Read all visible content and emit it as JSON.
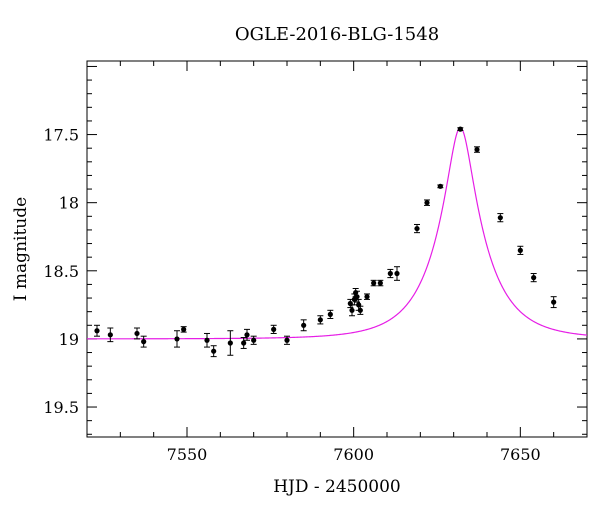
{
  "chart_data": {
    "type": "scatter",
    "title": "OGLE-2016-BLG-1548",
    "xlabel": "HJD - 2450000",
    "ylabel": "I magnitude",
    "xlim": [
      7520,
      7670
    ],
    "ylim": [
      19.72,
      16.96
    ],
    "y_inverted": true,
    "x_ticks": [
      7550,
      7600,
      7650
    ],
    "y_ticks": [
      17.5,
      18,
      18.5,
      19,
      19.5
    ],
    "x_tick_labels": [
      "7550",
      "7600",
      "7650"
    ],
    "y_tick_labels": [
      "17.5",
      "18",
      "18.5",
      "19",
      "19.5"
    ],
    "grid": false,
    "colors": {
      "points": "#000000",
      "model": "#e61ee6"
    },
    "series": [
      {
        "type": "scatter",
        "points": [
          {
            "x": 7523,
            "y": 18.94,
            "err": 0.04
          },
          {
            "x": 7527,
            "y": 18.97,
            "err": 0.05
          },
          {
            "x": 7535,
            "y": 18.96,
            "err": 0.04
          },
          {
            "x": 7537,
            "y": 19.02,
            "err": 0.04
          },
          {
            "x": 7547,
            "y": 19.0,
            "err": 0.06
          },
          {
            "x": 7549,
            "y": 18.93,
            "err": 0.02
          },
          {
            "x": 7556,
            "y": 19.01,
            "err": 0.05
          },
          {
            "x": 7558,
            "y": 19.09,
            "err": 0.04
          },
          {
            "x": 7563,
            "y": 19.03,
            "err": 0.09
          },
          {
            "x": 7567,
            "y": 19.03,
            "err": 0.04
          },
          {
            "x": 7568,
            "y": 18.97,
            "err": 0.04
          },
          {
            "x": 7570,
            "y": 19.01,
            "err": 0.03
          },
          {
            "x": 7576,
            "y": 18.93,
            "err": 0.03
          },
          {
            "x": 7580,
            "y": 19.01,
            "err": 0.03
          },
          {
            "x": 7585,
            "y": 18.9,
            "err": 0.04
          },
          {
            "x": 7590,
            "y": 18.86,
            "err": 0.03
          },
          {
            "x": 7593,
            "y": 18.82,
            "err": 0.03
          },
          {
            "x": 7599,
            "y": 18.74,
            "err": 0.03
          },
          {
            "x": 7599.5,
            "y": 18.79,
            "err": 0.04
          },
          {
            "x": 7600.2,
            "y": 18.71,
            "err": 0.04
          },
          {
            "x": 7600.6,
            "y": 18.66,
            "err": 0.03
          },
          {
            "x": 7601,
            "y": 18.69,
            "err": 0.04
          },
          {
            "x": 7601.5,
            "y": 18.75,
            "err": 0.04
          },
          {
            "x": 7602,
            "y": 18.79,
            "err": 0.03
          },
          {
            "x": 7604,
            "y": 18.69,
            "err": 0.02
          },
          {
            "x": 7606,
            "y": 18.59,
            "err": 0.02
          },
          {
            "x": 7608,
            "y": 18.59,
            "err": 0.02
          },
          {
            "x": 7611,
            "y": 18.52,
            "err": 0.03
          },
          {
            "x": 7613,
            "y": 18.52,
            "err": 0.05
          },
          {
            "x": 7619,
            "y": 18.19,
            "err": 0.03
          },
          {
            "x": 7622,
            "y": 18.0,
            "err": 0.02
          },
          {
            "x": 7626,
            "y": 17.88,
            "err": 0.01
          },
          {
            "x": 7632,
            "y": 17.46,
            "err": 0.01
          },
          {
            "x": 7637,
            "y": 17.61,
            "err": 0.02
          },
          {
            "x": 7644,
            "y": 18.11,
            "err": 0.03
          },
          {
            "x": 7650,
            "y": 18.35,
            "err": 0.03
          },
          {
            "x": 7654,
            "y": 18.55,
            "err": 0.03
          },
          {
            "x": 7660,
            "y": 18.73,
            "err": 0.04
          }
        ]
      },
      {
        "type": "line",
        "model": {
          "t0": 7632,
          "tE": 14.5,
          "u0": 0.245,
          "baseline": 19.0,
          "fs": 1.0
        }
      }
    ]
  }
}
